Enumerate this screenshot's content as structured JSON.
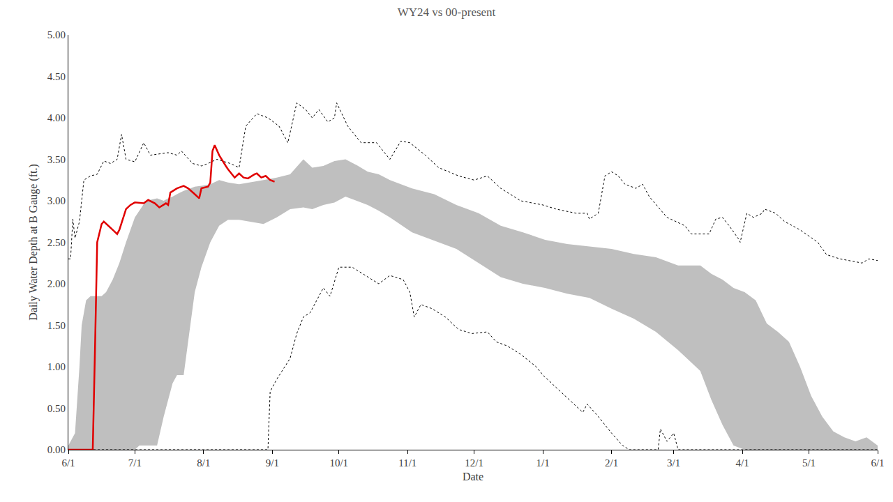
{
  "chart_data": {
    "type": "line",
    "title": "WY24 vs 00-present",
    "x_label": "Date",
    "y_label": "Daily Water Depth at B Gauge (ft.)",
    "grid": false,
    "xlim": [
      0,
      365
    ],
    "xticks": [
      {
        "value": 0,
        "label": "6/1"
      },
      {
        "value": 30,
        "label": "7/1"
      },
      {
        "value": 61,
        "label": "8/1"
      },
      {
        "value": 92,
        "label": "9/1"
      },
      {
        "value": 122,
        "label": "10/1"
      },
      {
        "value": 153,
        "label": "11/1"
      },
      {
        "value": 183,
        "label": "12/1"
      },
      {
        "value": 214,
        "label": "1/1"
      },
      {
        "value": 245,
        "label": "2/1"
      },
      {
        "value": 273,
        "label": "3/1"
      },
      {
        "value": 304,
        "label": "4/1"
      },
      {
        "value": 334,
        "label": "5/1"
      },
      {
        "value": 365,
        "label": "6/1"
      }
    ],
    "ylim": [
      0,
      5
    ],
    "yticks": [
      {
        "value": 0,
        "label": "0.00"
      },
      {
        "value": 0.5,
        "label": "0.50"
      },
      {
        "value": 1,
        "label": "1.00"
      },
      {
        "value": 1.5,
        "label": "1.50"
      },
      {
        "value": 2,
        "label": "2.00"
      },
      {
        "value": 2.5,
        "label": "2.50"
      },
      {
        "value": 3,
        "label": "3.00"
      },
      {
        "value": 3.5,
        "label": "3.50"
      },
      {
        "value": 4,
        "label": "4.00"
      },
      {
        "value": 4.5,
        "label": "4.50"
      },
      {
        "value": 5,
        "label": "5.00"
      }
    ],
    "series": [
      {
        "type": "range",
        "color": "#bfbfbf",
        "x": [
          0,
          3,
          5,
          6,
          8,
          10,
          15,
          17,
          20,
          23,
          26,
          28,
          30,
          32,
          35,
          40,
          43,
          45,
          47,
          49,
          52,
          55,
          57,
          60,
          64,
          68,
          72,
          77,
          82,
          88,
          94,
          100,
          106,
          110,
          115,
          120,
          125,
          130,
          135,
          140,
          145,
          155,
          165,
          175,
          185,
          195,
          205,
          215,
          225,
          235,
          245,
          255,
          265,
          275,
          285,
          290,
          295,
          300,
          305,
          310,
          315,
          320,
          325,
          330,
          335,
          340,
          345,
          350,
          355,
          360,
          365
        ],
        "low": [
          0,
          0,
          0,
          0,
          0,
          0,
          0,
          0,
          0,
          0,
          0,
          0,
          0,
          0.05,
          0.05,
          0.05,
          0.4,
          0.6,
          0.8,
          0.9,
          0.9,
          1.5,
          1.9,
          2.2,
          2.5,
          2.7,
          2.77,
          2.77,
          2.75,
          2.72,
          2.8,
          2.9,
          2.92,
          2.9,
          2.95,
          2.98,
          3.05,
          3.0,
          2.95,
          2.88,
          2.8,
          2.62,
          2.52,
          2.42,
          2.25,
          2.08,
          2.0,
          1.95,
          1.88,
          1.83,
          1.7,
          1.58,
          1.42,
          1.2,
          0.95,
          0.6,
          0.3,
          0.05,
          0,
          0,
          0,
          0,
          0,
          0,
          0,
          0,
          0,
          0,
          0,
          0,
          0
        ],
        "high": [
          0.05,
          0.2,
          1.0,
          1.5,
          1.8,
          1.85,
          1.85,
          1.9,
          2.05,
          2.25,
          2.5,
          2.65,
          2.8,
          2.88,
          3.0,
          3.03,
          3.0,
          3.03,
          3.05,
          3.08,
          3.12,
          3.15,
          3.17,
          3.18,
          3.2,
          3.25,
          3.22,
          3.2,
          3.22,
          3.25,
          3.28,
          3.32,
          3.5,
          3.4,
          3.42,
          3.48,
          3.5,
          3.43,
          3.35,
          3.32,
          3.25,
          3.15,
          3.08,
          2.95,
          2.85,
          2.7,
          2.62,
          2.53,
          2.48,
          2.45,
          2.42,
          2.36,
          2.32,
          2.22,
          2.22,
          2.12,
          2.05,
          1.95,
          1.9,
          1.8,
          1.52,
          1.42,
          1.3,
          1.0,
          0.65,
          0.4,
          0.22,
          0.15,
          0.1,
          0.15,
          0.05
        ]
      },
      {
        "type": "line",
        "color": "#000000",
        "line_style": "dotted",
        "x": [
          0,
          1,
          2,
          3,
          5,
          7,
          10,
          13,
          16,
          19,
          22,
          24,
          26,
          30,
          34,
          37,
          45,
          49,
          51,
          56,
          60,
          63,
          67,
          73,
          77,
          80,
          85,
          90,
          95,
          99,
          103,
          107,
          110,
          113,
          117,
          120,
          121,
          126,
          132,
          139,
          145,
          150,
          154,
          161,
          167,
          176,
          183,
          189,
          195,
          204,
          214,
          220,
          229,
          234,
          235,
          239,
          242,
          245,
          248,
          251,
          256,
          259,
          262,
          270,
          278,
          281,
          286,
          289,
          292,
          295,
          298,
          302,
          303,
          306,
          309,
          313,
          314,
          319,
          323,
          330,
          338,
          342,
          348,
          358,
          361,
          365
        ],
        "values": [
          2.3,
          2.3,
          2.78,
          2.55,
          2.75,
          3.25,
          3.3,
          3.32,
          3.48,
          3.45,
          3.5,
          3.8,
          3.5,
          3.47,
          3.7,
          3.55,
          3.58,
          3.55,
          3.6,
          3.45,
          3.42,
          3.45,
          3.5,
          3.45,
          3.4,
          3.9,
          4.05,
          4.0,
          3.9,
          3.7,
          4.18,
          4.1,
          4.0,
          4.1,
          3.95,
          4.0,
          4.18,
          3.9,
          3.7,
          3.7,
          3.5,
          3.72,
          3.7,
          3.55,
          3.4,
          3.3,
          3.25,
          3.3,
          3.15,
          3.0,
          2.95,
          2.9,
          2.85,
          2.85,
          2.78,
          2.85,
          3.3,
          3.35,
          3.3,
          3.2,
          3.15,
          3.2,
          3.05,
          2.8,
          2.7,
          2.6,
          2.6,
          2.6,
          2.78,
          2.8,
          2.7,
          2.55,
          2.5,
          2.85,
          2.8,
          2.85,
          2.9,
          2.85,
          2.75,
          2.65,
          2.5,
          2.35,
          2.3,
          2.25,
          2.3,
          2.28
        ]
      },
      {
        "type": "line",
        "color": "#000000",
        "line_style": "dotted",
        "x": [
          0,
          90,
          91,
          94,
          100,
          103,
          106,
          109,
          115,
          118,
          122,
          128,
          134,
          140,
          145,
          151,
          154,
          156,
          159,
          164,
          170,
          176,
          182,
          189,
          193,
          198,
          204,
          211,
          214,
          220,
          226,
          232,
          234,
          239,
          245,
          250,
          253,
          266,
          267,
          270,
          273,
          275,
          365
        ],
        "values": [
          0,
          0,
          0.7,
          0.85,
          1.1,
          1.4,
          1.6,
          1.65,
          1.95,
          1.85,
          2.2,
          2.2,
          2.1,
          2.0,
          2.1,
          2.05,
          1.9,
          1.6,
          1.75,
          1.7,
          1.6,
          1.45,
          1.4,
          1.42,
          1.3,
          1.25,
          1.15,
          1.0,
          0.9,
          0.75,
          0.6,
          0.45,
          0.55,
          0.4,
          0.2,
          0.05,
          0,
          0,
          0.25,
          0.1,
          0.2,
          0,
          0
        ]
      },
      {
        "type": "line",
        "color": "#e00000",
        "line_style": "solid",
        "x": [
          0,
          11,
          12,
          13,
          15,
          16,
          20,
          22,
          23,
          26,
          28,
          30,
          34,
          36,
          39,
          41,
          44,
          45,
          46,
          49,
          52,
          54,
          57,
          59,
          60,
          63,
          64,
          65,
          66,
          68,
          71,
          72,
          75,
          77,
          79,
          81,
          84,
          85,
          87,
          89,
          91,
          93
        ],
        "values": [
          0,
          0,
          1.2,
          2.5,
          2.72,
          2.75,
          2.65,
          2.6,
          2.65,
          2.9,
          2.95,
          2.98,
          2.97,
          3.01,
          2.97,
          2.92,
          2.97,
          2.95,
          3.1,
          3.15,
          3.18,
          3.15,
          3.08,
          3.03,
          3.15,
          3.17,
          3.22,
          3.6,
          3.67,
          3.55,
          3.42,
          3.38,
          3.28,
          3.33,
          3.28,
          3.27,
          3.32,
          3.33,
          3.28,
          3.3,
          3.25,
          3.23
        ]
      }
    ]
  }
}
